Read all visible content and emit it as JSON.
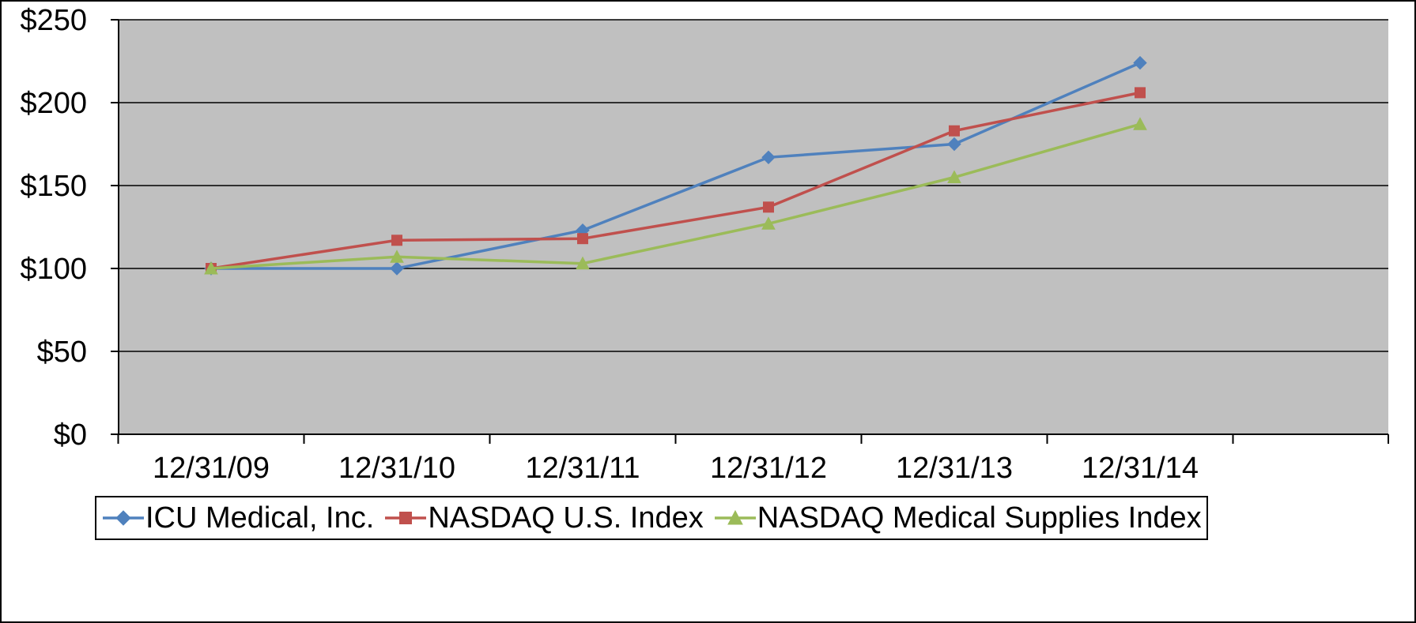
{
  "figure": {
    "outer_border": "#000000",
    "plot_bg": "#c0c0c0",
    "grid_color": "#000000",
    "axis_color": "#000000",
    "text_color": "#000000"
  },
  "chart_data": {
    "type": "line",
    "title": "",
    "xlabel": "",
    "ylabel": "",
    "categories": [
      "12/31/09",
      "12/31/10",
      "12/31/11",
      "12/31/12",
      "12/31/13",
      "12/31/14"
    ],
    "series": [
      {
        "name": "ICU Medical, Inc.",
        "color": "#4f81bd",
        "marker": "diamond",
        "values": [
          100,
          100,
          123,
          167,
          175,
          224
        ]
      },
      {
        "name": "NASDAQ U.S. Index",
        "color": "#c0504d",
        "marker": "square",
        "values": [
          100,
          117,
          118,
          137,
          183,
          206
        ]
      },
      {
        "name": "NASDAQ Medical Supplies Index",
        "color": "#9bbb59",
        "marker": "triangle",
        "values": [
          100,
          107,
          103,
          127,
          155,
          187
        ]
      }
    ],
    "y_axis": {
      "ticks": [
        0,
        50,
        100,
        150,
        200,
        250
      ],
      "tick_labels": [
        "$0",
        "$50",
        "$100",
        "$150",
        "$200",
        "$250"
      ],
      "ylim": [
        0,
        250
      ],
      "grid": true
    },
    "legend_position": "bottom"
  }
}
